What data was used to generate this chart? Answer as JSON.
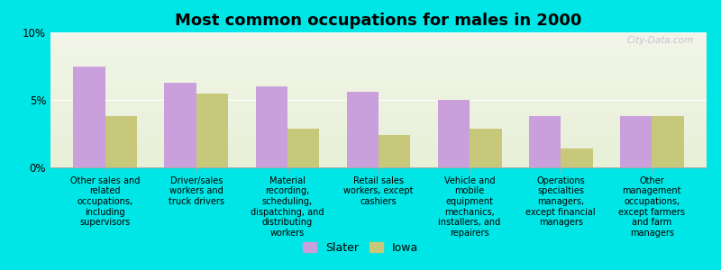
{
  "title": "Most common occupations for males in 2000",
  "categories": [
    "Other sales and\nrelated\noccupations,\nincluding\nsupervisors",
    "Driver/sales\nworkers and\ntruck drivers",
    "Material\nrecording,\nscheduling,\ndispatching, and\ndistributing\nworkers",
    "Retail sales\nworkers, except\ncashiers",
    "Vehicle and\nmobile\nequipment\nmechanics,\ninstallers, and\nrepairers",
    "Operations\nspecialties\nmanagers,\nexcept financial\nmanagers",
    "Other\nmanagement\noccupations,\nexcept farmers\nand farm\nmanagers"
  ],
  "slater_values": [
    7.5,
    6.3,
    6.0,
    5.6,
    5.0,
    3.8,
    3.8
  ],
  "iowa_values": [
    3.8,
    5.5,
    2.9,
    2.4,
    2.9,
    1.4,
    3.8
  ],
  "slater_color": "#c9a0dc",
  "iowa_color": "#c8c87a",
  "background_color": "#00e5e5",
  "plot_bg_top": "#f2f5e8",
  "plot_bg_bottom": "#e8f0d8",
  "ylim": [
    0,
    10
  ],
  "yticks": [
    0,
    5,
    10
  ],
  "ytick_labels": [
    "0%",
    "5%",
    "10%"
  ],
  "legend_labels": [
    "Slater",
    "Iowa"
  ],
  "title_fontsize": 13,
  "label_fontsize": 7.0,
  "bar_width": 0.35,
  "watermark": "City-Data.com"
}
